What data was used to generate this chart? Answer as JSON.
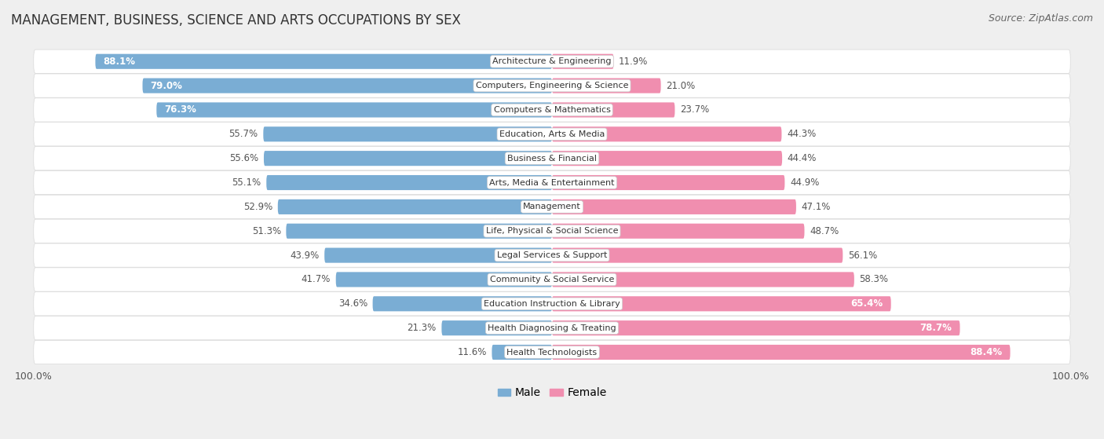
{
  "title": "MANAGEMENT, BUSINESS, SCIENCE AND ARTS OCCUPATIONS BY SEX",
  "source": "Source: ZipAtlas.com",
  "categories": [
    "Architecture & Engineering",
    "Computers, Engineering & Science",
    "Computers & Mathematics",
    "Education, Arts & Media",
    "Business & Financial",
    "Arts, Media & Entertainment",
    "Management",
    "Life, Physical & Social Science",
    "Legal Services & Support",
    "Community & Social Service",
    "Education Instruction & Library",
    "Health Diagnosing & Treating",
    "Health Technologists"
  ],
  "male": [
    88.1,
    79.0,
    76.3,
    55.7,
    55.6,
    55.1,
    52.9,
    51.3,
    43.9,
    41.7,
    34.6,
    21.3,
    11.6
  ],
  "female": [
    11.9,
    21.0,
    23.7,
    44.3,
    44.4,
    44.9,
    47.1,
    48.7,
    56.1,
    58.3,
    65.4,
    78.7,
    88.4
  ],
  "male_color": "#7aadd4",
  "female_color": "#f08eaf",
  "background_color": "#efefef",
  "row_bg_color": "#ffffff",
  "row_border_color": "#d8d8d8",
  "title_fontsize": 12,
  "source_fontsize": 9,
  "label_fontsize": 8.5,
  "cat_fontsize": 8.0,
  "bar_height": 0.62,
  "legend_male": "Male",
  "legend_female": "Female"
}
